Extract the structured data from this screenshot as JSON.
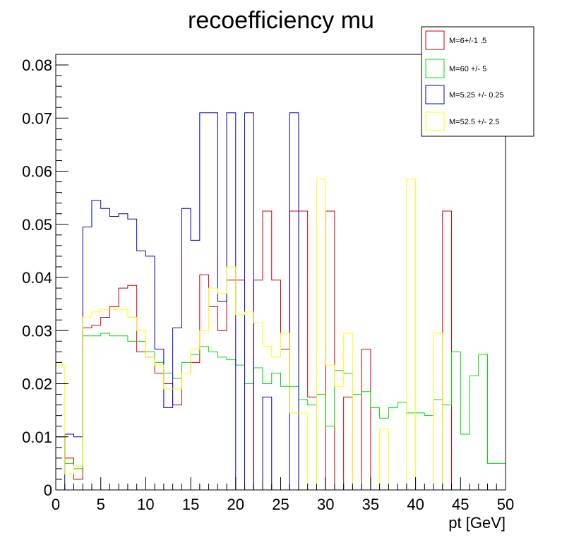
{
  "chart_data": {
    "type": "histogram",
    "title": "recoefficiency mu",
    "xlabel": "pt [GeV]",
    "ylabel": "",
    "xlim": [
      0,
      50
    ],
    "ylim": [
      0,
      0.082
    ],
    "bin_width": 1,
    "grid": false,
    "legend_position": "top-right",
    "x_ticks": [
      0,
      5,
      10,
      15,
      20,
      25,
      30,
      35,
      40,
      45,
      50
    ],
    "y_ticks": [
      0,
      0.01,
      0.02,
      0.03,
      0.04,
      0.05,
      0.06,
      0.07,
      0.08
    ],
    "x_tick_labels": [
      "0",
      "5",
      "10",
      "15",
      "20",
      "25",
      "30",
      "35",
      "40",
      "45",
      "50"
    ],
    "y_tick_labels": [
      "0",
      "0.01",
      "0.02",
      "0.03",
      "0.04",
      "0.05",
      "0.06",
      "0.07",
      "0.08"
    ],
    "series": [
      {
        "name": "M=6+/-1 .5",
        "color": "#cc0000",
        "values": [
          0.01,
          0.006,
          0.002,
          0.0305,
          0.031,
          0.0325,
          0.0345,
          0.038,
          0.0385,
          0.026,
          0.025,
          0.022,
          0.02,
          0.016,
          0.022,
          0.024,
          0.0405,
          0.0345,
          0.03,
          0.0395,
          0.0395,
          0.0,
          0.0395,
          0.0525,
          0.0395,
          0.0265,
          0.0525,
          0.0525,
          0.0175,
          0.0,
          0.0525,
          0.0,
          0.0175,
          0.0,
          0.0265,
          0.0,
          0.0,
          0.0,
          0.0,
          0.0,
          0.0,
          0.0,
          0.0,
          0.0525,
          0.0,
          0.0,
          0.0,
          0.0,
          0.0,
          0.0
        ]
      },
      {
        "name": "M=60 +/- 5",
        "color": "#00dd00",
        "values": [
          0.01,
          0.005,
          0.004,
          0.029,
          0.029,
          0.0295,
          0.029,
          0.029,
          0.028,
          0.028,
          0.026,
          0.024,
          0.022,
          0.021,
          0.024,
          0.0255,
          0.027,
          0.026,
          0.025,
          0.0245,
          0.0235,
          0.02,
          0.023,
          0.02,
          0.022,
          0.0195,
          0.0195,
          0.017,
          0.016,
          0.018,
          0.012,
          0.0225,
          0.022,
          0.018,
          0.0185,
          0.0155,
          0.0135,
          0.0155,
          0.0165,
          0.0145,
          0.0145,
          0.014,
          0.017,
          0.016,
          0.026,
          0.0105,
          0.0215,
          0.0255,
          0.005,
          0.005
        ]
      },
      {
        "name": "M=5.25 +/- 0.25",
        "color": "#0000cc",
        "values": [
          0.0,
          0.0105,
          0.01,
          0.0495,
          0.0545,
          0.053,
          0.0515,
          0.052,
          0.051,
          0.045,
          0.044,
          0.0265,
          0.0155,
          0.0305,
          0.053,
          0.047,
          0.071,
          0.071,
          0.0355,
          0.071,
          0.0,
          0.071,
          0.0,
          0.0175,
          0.0,
          0.0,
          0.071,
          0.0,
          0.0,
          0.0,
          0.0,
          0.0,
          0.0,
          0.0,
          0.0,
          0.0,
          0.0,
          0.0,
          0.0,
          0.0,
          0.0,
          0.0,
          0.0,
          0.0,
          0.0,
          0.0,
          0.0,
          0.0,
          0.0,
          0.0
        ]
      },
      {
        "name": "M=52.5 +/- 2.5",
        "color": "#ffff00",
        "values": [
          0.0235,
          0.003,
          0.0045,
          0.0325,
          0.0335,
          0.034,
          0.034,
          0.034,
          0.0325,
          0.03,
          0.025,
          0.0235,
          0.019,
          0.019,
          0.022,
          0.0265,
          0.03,
          0.038,
          0.037,
          0.042,
          0.033,
          0.0335,
          0.0315,
          0.027,
          0.025,
          0.0295,
          0.0145,
          0.0145,
          0.0,
          0.0585,
          0.0235,
          0.0195,
          0.0295,
          0.0,
          0.0,
          0.0,
          0.0115,
          0.0,
          0.0,
          0.0585,
          0.0,
          0.0,
          0.0295,
          0.0,
          0.0,
          0.0,
          0.0,
          0.0,
          0.0,
          0.0
        ]
      }
    ]
  }
}
